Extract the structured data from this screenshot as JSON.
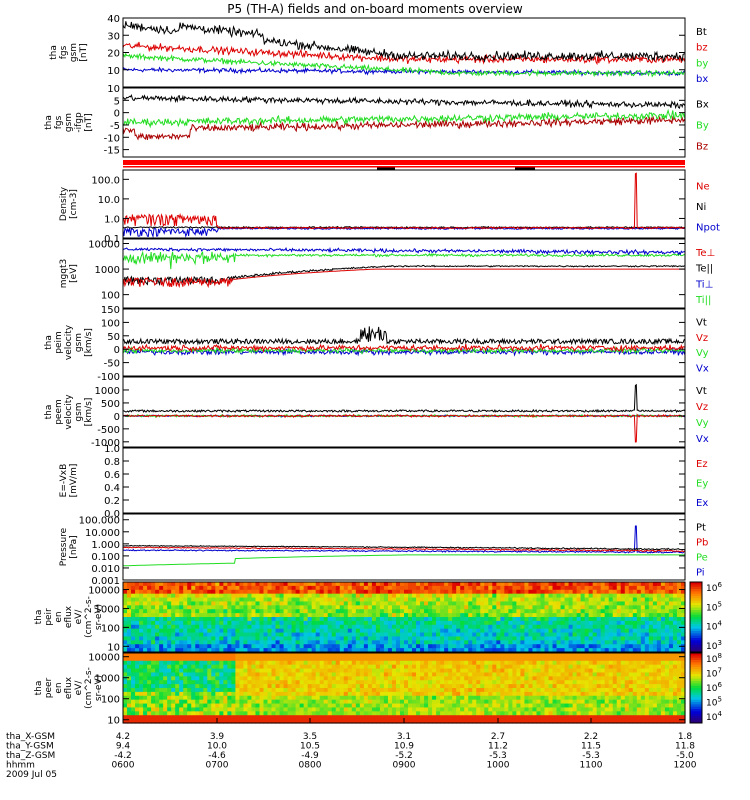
{
  "title": "P5 (TH-A) fields and on-board moments overview",
  "colors": {
    "black": "#000000",
    "red": "#dd0000",
    "green": "#22dd22",
    "blue": "#0000cc",
    "brown": "#aa0000"
  },
  "x_axis": {
    "rows": [
      {
        "label": "tha_X-GSM",
        "values": [
          "4.2",
          "3.9",
          "3.5",
          "3.1",
          "2.7",
          "2.2",
          "1.8"
        ]
      },
      {
        "label": "tha_Y-GSM",
        "values": [
          "9.4",
          "10.0",
          "10.5",
          "10.9",
          "11.2",
          "11.5",
          "11.8"
        ]
      },
      {
        "label": "tha_Z-GSM",
        "values": [
          "-4.2",
          "-4.6",
          "-4.9",
          "-5.2",
          "-5.3",
          "-5.3",
          "-5.0"
        ]
      },
      {
        "label": "hhmm",
        "values": [
          "0600",
          "0700",
          "0800",
          "0900",
          "1000",
          "1100",
          "1200"
        ]
      }
    ],
    "date": "2009 Jul 05"
  },
  "chart_data": [
    {
      "type": "line",
      "ylabel": [
        "tha",
        "fgs",
        "gsm",
        "[nT]"
      ],
      "ylim": [
        0,
        40
      ],
      "yticks": [
        "10",
        "20",
        "30",
        "40"
      ],
      "series": [
        {
          "name": "Bt",
          "color": "#000000"
        },
        {
          "name": "bz",
          "color": "#dd0000"
        },
        {
          "name": "by",
          "color": "#22dd22"
        },
        {
          "name": "bx",
          "color": "#0000cc"
        }
      ]
    },
    {
      "type": "line",
      "ylabel": [
        "tha",
        "fgs",
        "gsm",
        "-ifgp",
        "[nT]"
      ],
      "ylim": [
        -18,
        10
      ],
      "yticks": [
        "-15",
        "-10",
        "-5",
        "0",
        "5",
        "10"
      ],
      "series": [
        {
          "name": "Bx",
          "color": "#000000"
        },
        {
          "name": "By",
          "color": "#22dd22"
        },
        {
          "name": "Bz",
          "color": "#aa0000"
        }
      ]
    },
    {
      "type": "line",
      "ylabel": [
        "Density",
        "[cm-3]"
      ],
      "ylim": [
        0.1,
        300
      ],
      "log": true,
      "yticks": [
        "0.1",
        "1.0",
        "10.0",
        "100.0"
      ],
      "series": [
        {
          "name": "Ne",
          "color": "#dd0000"
        },
        {
          "name": "Ni",
          "color": "#000000"
        },
        {
          "name": "Npot",
          "color": "#0000cc"
        }
      ]
    },
    {
      "type": "line",
      "ylabel": [
        "mgqt3",
        "[eV]"
      ],
      "ylim": [
        30,
        15000
      ],
      "log": true,
      "yticks": [
        "100",
        "1000",
        "10000"
      ],
      "series": [
        {
          "name": "Te⊥",
          "color": "#dd0000"
        },
        {
          "name": "Te||",
          "color": "#000000"
        },
        {
          "name": "Ti⊥",
          "color": "#0000cc"
        },
        {
          "name": "Ti||",
          "color": "#22dd22"
        }
      ]
    },
    {
      "type": "line",
      "ylabel": [
        "tha",
        "peim",
        "velocity",
        "gsm",
        "[km/s]"
      ],
      "ylim": [
        -100,
        150
      ],
      "yticks": [
        "-100",
        "-50",
        "0",
        "50",
        "100",
        "150"
      ],
      "series": [
        {
          "name": "Vt",
          "color": "#000000"
        },
        {
          "name": "Vz",
          "color": "#dd0000"
        },
        {
          "name": "Vy",
          "color": "#22dd22"
        },
        {
          "name": "Vx",
          "color": "#0000cc"
        }
      ]
    },
    {
      "type": "line",
      "ylabel": [
        "tha",
        "peem",
        "velocity",
        "gsm",
        "[km/s]"
      ],
      "ylim": [
        -1200,
        1500
      ],
      "yticks": [
        "-1000",
        "-500",
        "0",
        "500",
        "1000"
      ],
      "series": [
        {
          "name": "Vt",
          "color": "#000000"
        },
        {
          "name": "Vz",
          "color": "#dd0000"
        },
        {
          "name": "Vy",
          "color": "#22dd22"
        },
        {
          "name": "Vx",
          "color": "#0000cc"
        }
      ]
    },
    {
      "type": "line",
      "ylabel": [
        "E=-VxB",
        "[mV/m]"
      ],
      "ylim": [
        0,
        1.0
      ],
      "yticks": [
        "0.0",
        "0.2",
        "0.4",
        "0.6",
        "0.8",
        "1.0"
      ],
      "series": [
        {
          "name": "Ez",
          "color": "#dd0000"
        },
        {
          "name": "Ey",
          "color": "#22dd22"
        },
        {
          "name": "Ex",
          "color": "#0000cc"
        }
      ]
    },
    {
      "type": "line",
      "ylabel": [
        "Pressure",
        "[nPa]"
      ],
      "ylim": [
        0.001,
        300
      ],
      "log": true,
      "yticks": [
        "0.001",
        "0.010",
        "0.100",
        "1.000",
        "10.000",
        "100.000"
      ],
      "series": [
        {
          "name": "Pt",
          "color": "#000000"
        },
        {
          "name": "Pb",
          "color": "#dd0000"
        },
        {
          "name": "Pe",
          "color": "#22dd22"
        },
        {
          "name": "Pi",
          "color": "#0000cc"
        }
      ]
    },
    {
      "type": "heatmap",
      "ylabel": [
        "tha",
        "peir",
        "en",
        "eflux",
        "eV/",
        "(cm^2-s-",
        "sr-eV)"
      ],
      "ylim": [
        5,
        25000
      ],
      "log": true,
      "yticks": [
        "10",
        "100",
        "1000",
        "10000"
      ],
      "colorbar": [
        "10^3",
        "10^4",
        "10^5",
        "10^6"
      ]
    },
    {
      "type": "heatmap",
      "ylabel": [
        "tha",
        "peer",
        "en",
        "eflux",
        "eV/",
        "(cm^2-s-",
        "sr-eV)"
      ],
      "ylim": [
        7,
        15000
      ],
      "log": true,
      "yticks": [
        "10",
        "100",
        "1000",
        "10000"
      ],
      "colorbar": [
        "10^4",
        "10^5",
        "10^6",
        "10^7",
        "10^8"
      ]
    }
  ]
}
